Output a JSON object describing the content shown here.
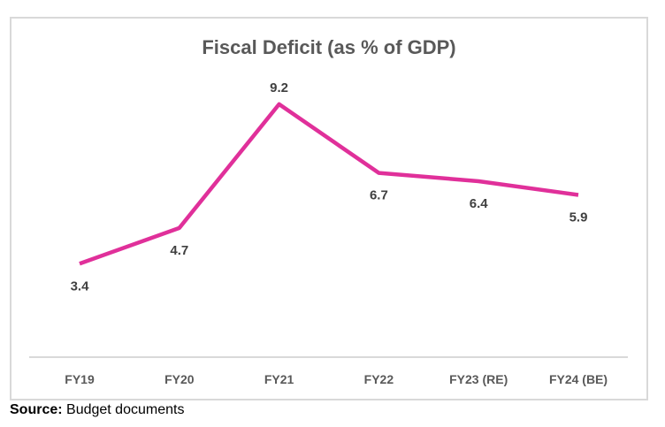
{
  "chart_data": {
    "type": "line",
    "title": "Fiscal Deficit (as % of GDP)",
    "categories": [
      "FY19",
      "FY20",
      "FY21",
      "FY22",
      "FY23 (RE)",
      "FY24 (BE)"
    ],
    "series": [
      {
        "name": "Fiscal Deficit",
        "values": [
          3.4,
          4.7,
          9.2,
          6.7,
          6.4,
          5.9
        ],
        "color": "#e0309a"
      }
    ],
    "data_labels": [
      "3.4",
      "4.7",
      "9.2",
      "6.7",
      "6.4",
      "5.9"
    ],
    "xlabel": "",
    "ylabel": "",
    "ylim": [
      0,
      10
    ],
    "grid": false,
    "legend": "none"
  },
  "source": {
    "label": "Source:",
    "text": " Budget documents"
  }
}
